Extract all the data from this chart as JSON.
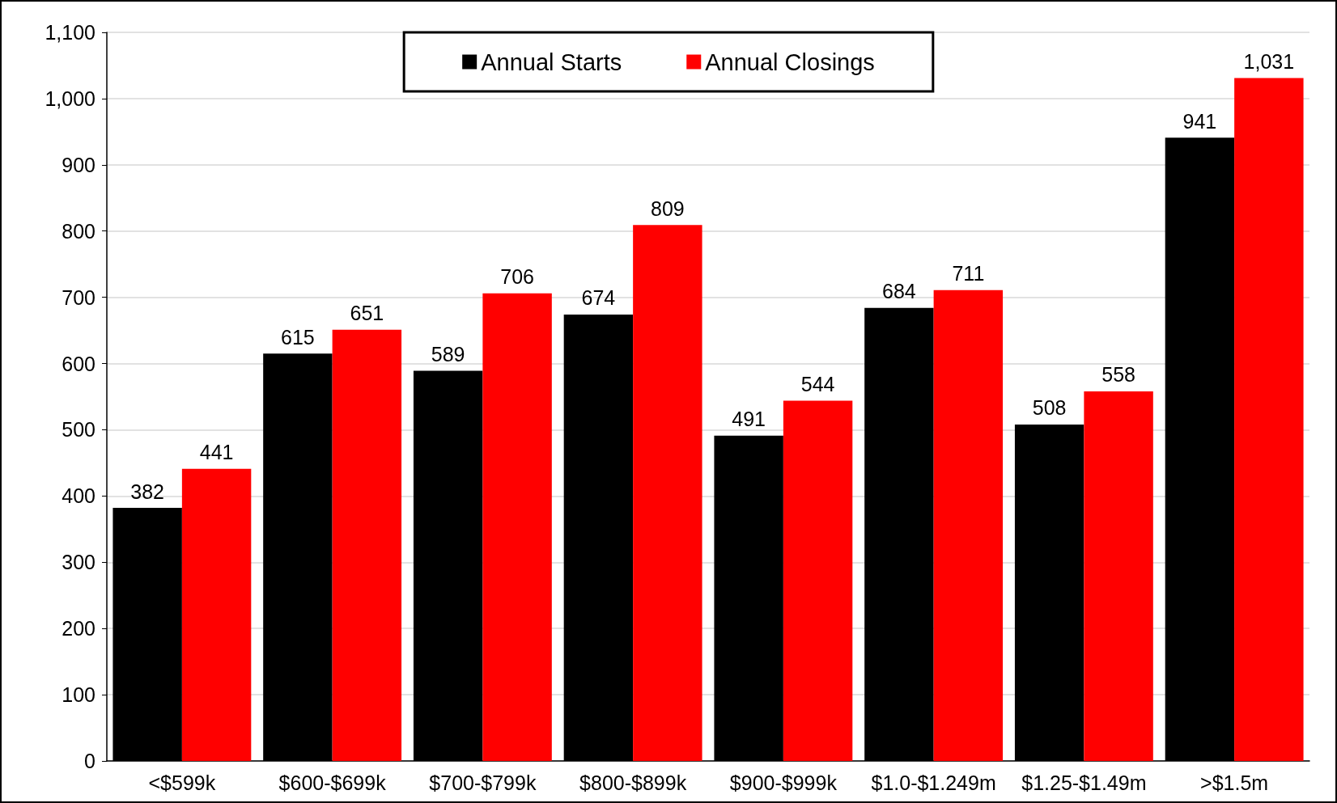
{
  "chart_data": {
    "type": "bar",
    "categories": [
      "<$599k",
      "$600-$699k",
      "$700-$799k",
      "$800-$899k",
      "$900-$999k",
      "$1.0-$1.249m",
      "$1.25-$1.49m",
      ">$1.5m"
    ],
    "series": [
      {
        "name": "Annual Starts",
        "color": "#000000",
        "values": [
          382,
          615,
          589,
          674,
          491,
          684,
          508,
          941
        ],
        "value_labels": [
          "382",
          "615",
          "589",
          "674",
          "491",
          "684",
          "508",
          "941"
        ]
      },
      {
        "name": "Annual Closings",
        "color": "#ff0000",
        "values": [
          441,
          651,
          706,
          809,
          544,
          711,
          558,
          1031
        ],
        "value_labels": [
          "441",
          "651",
          "706",
          "809",
          "544",
          "711",
          "558",
          "1,031"
        ]
      }
    ],
    "ylim": [
      0,
      1100
    ],
    "yticks": [
      0,
      100,
      200,
      300,
      400,
      500,
      600,
      700,
      800,
      900,
      {
        "value": 1000,
        "label": "1,000"
      },
      {
        "value": 1100,
        "label": "1,100"
      }
    ],
    "grid": "y",
    "legend": "top"
  }
}
